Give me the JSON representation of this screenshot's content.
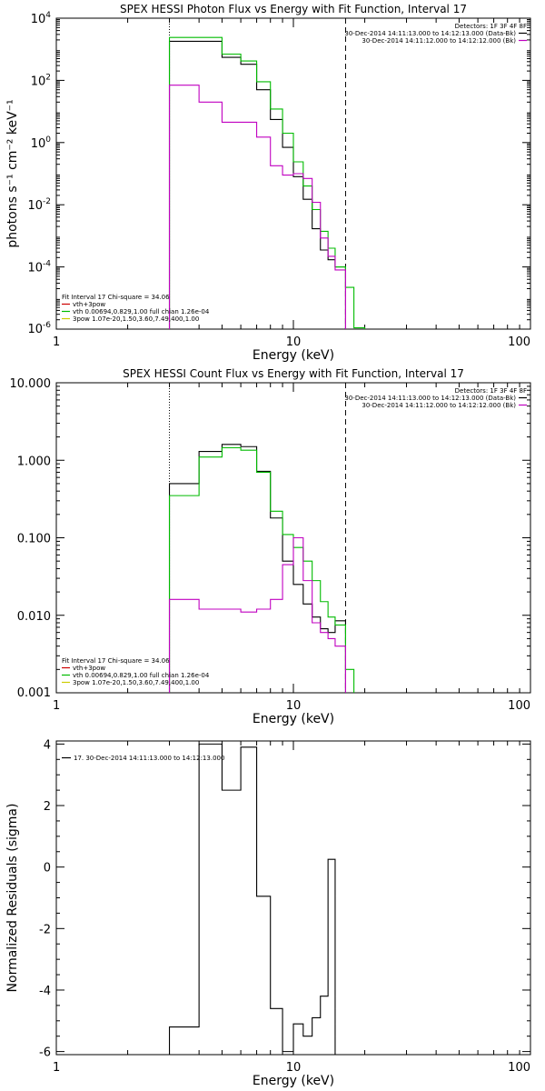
{
  "chart_data": [
    {
      "type": "line",
      "title": "SPEX HESSI Photon Flux vs Energy with Fit Function, Interval 17",
      "xlabel": "Energy (keV)",
      "ylabel": "photons s⁻¹ cm⁻² keV⁻¹",
      "xscale": "log",
      "yscale": "log",
      "xlim": [
        1,
        100
      ],
      "ylim": [
        1e-06,
        10000.0
      ],
      "xticks": [
        {
          "v": 1,
          "label": "1"
        },
        {
          "v": 10,
          "label": "10"
        },
        {
          "v": 100,
          "label": "100"
        }
      ],
      "yticks": [
        {
          "v": 1e-06,
          "base": "10",
          "exp": "-6"
        },
        {
          "v": 0.0001,
          "base": "10",
          "exp": "-4"
        },
        {
          "v": 0.01,
          "base": "10",
          "exp": "-2"
        },
        {
          "v": 1,
          "base": "10",
          "exp": "0"
        },
        {
          "v": 100,
          "base": "10",
          "exp": "2"
        },
        {
          "v": 10000,
          "base": "10",
          "exp": "4"
        }
      ],
      "vlines": [
        {
          "x": 3.0,
          "style": "dotted"
        },
        {
          "x": 16.6,
          "style": "dashed"
        }
      ],
      "legend_right": {
        "header": "Detectors: 1F 3F 4F 8F",
        "lines": [
          {
            "text": "30-Dec-2014 14:11:13.000 to 14:12:13.000 (Data-Bk)",
            "color": "#000000"
          },
          {
            "text": "30-Dec-2014 14:11:12.000 to 14:12:12.000 (Bk)",
            "color": "#c000c0"
          }
        ]
      },
      "legend_left": {
        "header": "Fit Interval 17   Chi-square = 34.06",
        "lines": [
          {
            "text": "vth+3pow",
            "color": "#cc0000"
          },
          {
            "text": "vth 0.00694,0.829,1.00  full chian 1.26e-04",
            "color": "#00bb00"
          },
          {
            "text": "3pow 1.07e-20,1.50,3.60,7.49,400,1.00",
            "color": "#cccc00"
          }
        ]
      },
      "series": [
        {
          "color": "#000000",
          "edges": [
            3.0,
            4.0,
            5.0,
            6.0,
            7.0,
            8.0,
            9.0,
            10.0,
            11.0,
            12.0,
            13.0,
            14.0,
            15.0,
            16.6
          ],
          "values": [
            1800,
            1800,
            550,
            330,
            50,
            5.5,
            0.7,
            0.08,
            0.015,
            0.0017,
            0.00035,
            0.00017,
            0.0001
          ]
        },
        {
          "color": "#00bb00",
          "edges": [
            3.0,
            4.0,
            5.0,
            6.0,
            7.0,
            8.0,
            9.0,
            10.0,
            11.0,
            12.0,
            13.0,
            14.0,
            15.0,
            16.6,
            18.0,
            20.0
          ],
          "values": [
            2400,
            2400,
            700,
            420,
            90,
            12,
            2.0,
            0.24,
            0.04,
            0.007,
            0.0014,
            0.0004,
            0.0001,
            2.2e-05,
            1.1e-06
          ]
        },
        {
          "color": "#c000c0",
          "edges": [
            3.0,
            4.0,
            5.0,
            6.0,
            7.0,
            8.0,
            9.0,
            10.0,
            11.0,
            12.0,
            13.0,
            14.0,
            15.0,
            16.6
          ],
          "values": [
            70,
            20,
            4.5,
            4.5,
            1.5,
            0.18,
            0.09,
            0.1,
            0.07,
            0.012,
            0.00085,
            0.00022,
            8e-05
          ]
        }
      ]
    },
    {
      "type": "line",
      "title": "SPEX HESSI Count Flux vs Energy with Fit Function, Interval 17",
      "xlabel": "Energy (keV)",
      "ylabel": "",
      "xscale": "log",
      "yscale": "log",
      "xlim": [
        1,
        100
      ],
      "ylim": [
        0.001,
        10
      ],
      "xticks": [
        {
          "v": 1,
          "label": "1"
        },
        {
          "v": 10,
          "label": "10"
        },
        {
          "v": 100,
          "label": "100"
        }
      ],
      "yticks": [
        {
          "v": 0.001,
          "label": "0.001"
        },
        {
          "v": 0.01,
          "label": "0.010"
        },
        {
          "v": 0.1,
          "label": "0.100"
        },
        {
          "v": 1,
          "label": "1.000"
        },
        {
          "v": 10,
          "label": "10.000"
        }
      ],
      "vlines": [
        {
          "x": 3.0,
          "style": "dotted"
        },
        {
          "x": 16.6,
          "style": "dashed"
        }
      ],
      "legend_right": {
        "header": "Detectors: 1F 3F 4F 8F",
        "lines": [
          {
            "text": "30-Dec-2014 14:11:13.000 to 14:12:13.000 (Data-Bk)",
            "color": "#000000"
          },
          {
            "text": "30-Dec-2014 14:11:12.000 to 14:12:12.000 (Bk)",
            "color": "#c000c0"
          }
        ]
      },
      "legend_left": {
        "header": "Fit Interval 17   Chi-square = 34.06",
        "lines": [
          {
            "text": "vth+3pow",
            "color": "#cc0000"
          },
          {
            "text": "vth 0.00694,0.829,1.00  full chian 1.26e-04",
            "color": "#00bb00"
          },
          {
            "text": "3pow 1.07e-20,1.50,3.60,7.49,400,1.00",
            "color": "#cccc00"
          }
        ]
      },
      "series": [
        {
          "color": "#000000",
          "edges": [
            3.0,
            4.0,
            5.0,
            6.0,
            7.0,
            8.0,
            9.0,
            10.0,
            11.0,
            12.0,
            13.0,
            14.0,
            15.0,
            16.6
          ],
          "values": [
            0.5,
            1.3,
            1.6,
            1.5,
            0.72,
            0.18,
            0.05,
            0.025,
            0.014,
            0.0095,
            0.0067,
            0.006,
            0.0085
          ]
        },
        {
          "color": "#00bb00",
          "edges": [
            3.0,
            4.0,
            5.0,
            6.0,
            7.0,
            8.0,
            9.0,
            10.0,
            11.0,
            12.0,
            13.0,
            14.0,
            15.0,
            16.6,
            18.0
          ],
          "values": [
            0.35,
            1.1,
            1.45,
            1.35,
            0.7,
            0.22,
            0.11,
            0.075,
            0.05,
            0.028,
            0.015,
            0.0095,
            0.0075,
            0.002
          ]
        },
        {
          "color": "#c000c0",
          "edges": [
            3.0,
            4.0,
            5.0,
            6.0,
            7.0,
            8.0,
            9.0,
            10.0,
            11.0,
            12.0,
            13.0,
            14.0,
            15.0,
            16.6
          ],
          "values": [
            0.016,
            0.012,
            0.012,
            0.011,
            0.012,
            0.016,
            0.045,
            0.1,
            0.028,
            0.008,
            0.006,
            0.005,
            0.004
          ]
        }
      ]
    },
    {
      "type": "line",
      "title": "",
      "xlabel": "Energy (keV)",
      "ylabel": "Normalized Residuals (sigma)",
      "xscale": "log",
      "yscale": "linear",
      "xlim": [
        1,
        100
      ],
      "ylim": [
        -6.1,
        4.1
      ],
      "xticks": [
        {
          "v": 1,
          "label": "1"
        },
        {
          "v": 10,
          "label": "10"
        },
        {
          "v": 100,
          "label": "100"
        }
      ],
      "yticks": [
        {
          "v": -6,
          "label": "-6"
        },
        {
          "v": -4,
          "label": "-4"
        },
        {
          "v": -2,
          "label": "-2"
        },
        {
          "v": 0,
          "label": "0"
        },
        {
          "v": 2,
          "label": "2"
        },
        {
          "v": 4,
          "label": "4"
        }
      ],
      "vlines": [],
      "legend_left": {
        "header": "",
        "lines": [
          {
            "text": "17. 30-Dec-2014 14:11:13.000 to 14:12:13.000",
            "color": "#000000"
          }
        ]
      },
      "series": [
        {
          "color": "#000000",
          "edges": [
            3.0,
            4.0,
            5.0,
            6.0,
            7.0,
            8.0,
            9.0,
            10.0,
            11.0,
            12.0,
            13.0,
            14.0,
            15.0,
            16.6
          ],
          "values": [
            -5.2,
            4.0,
            2.5,
            3.9,
            -0.95,
            -4.6,
            -6.0,
            -5.1,
            -5.5,
            -4.9,
            -4.2,
            0.25,
            -6.1
          ]
        }
      ]
    }
  ]
}
